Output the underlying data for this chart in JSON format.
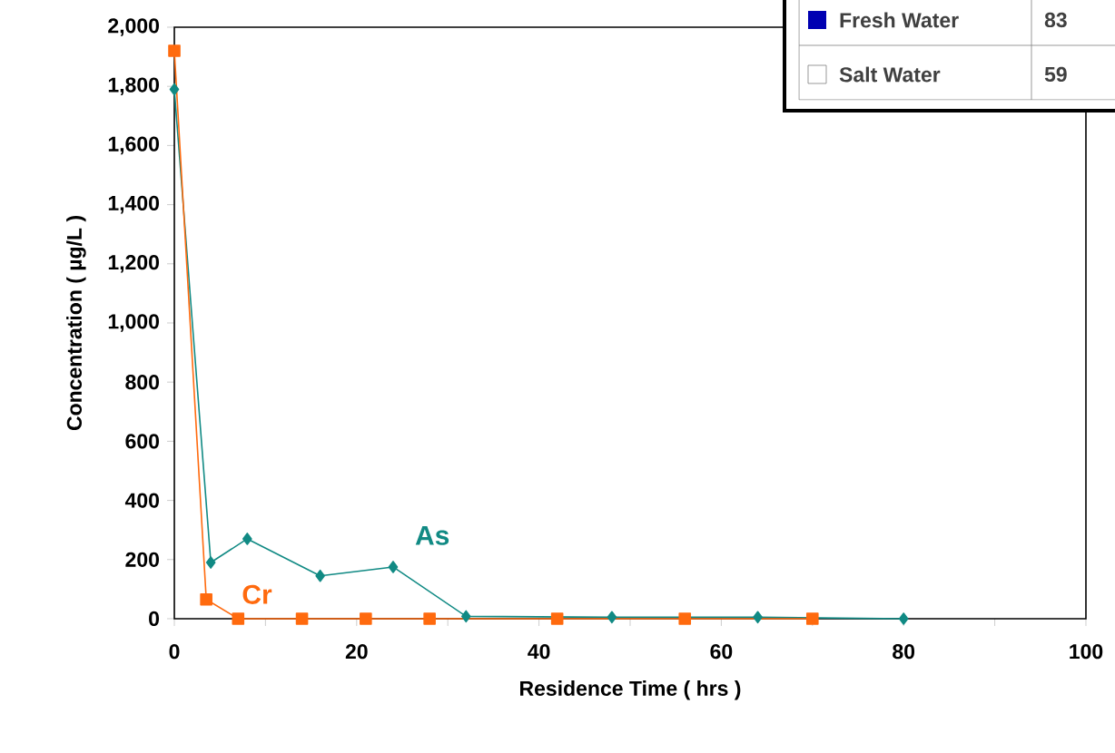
{
  "chart_data": {
    "type": "line",
    "xlabel": "Residence Time ( hrs )",
    "ylabel": "Concentration  ( µg/L )",
    "xlim": [
      0,
      100
    ],
    "xticks": [
      0,
      20,
      40,
      60,
      80,
      100
    ],
    "ylim": [
      0,
      2000
    ],
    "yticks": [
      0,
      {
        "value": 200,
        "label": "200"
      },
      {
        "value": 400,
        "label": "400"
      },
      {
        "value": 600,
        "label": "600"
      },
      {
        "value": 800,
        "label": "800"
      },
      {
        "value": 1000,
        "label": "1,000"
      },
      {
        "value": 1200,
        "label": "1,200"
      },
      {
        "value": 1400,
        "label": "1,400"
      },
      {
        "value": 1600,
        "label": "1,600"
      },
      {
        "value": 1800,
        "label": "1,800"
      },
      {
        "value": 2000,
        "label": "2,000"
      }
    ],
    "grid": false,
    "line_style": "solid",
    "annotations": [
      "Fresh Water",
      "83",
      "Salt Water",
      "59"
    ],
    "series": [
      {
        "name": "As",
        "color": "#118a84",
        "marker": "diamond",
        "x": [
          0,
          4,
          8,
          16,
          24,
          32,
          48,
          64,
          80
        ],
        "values": [
          1790,
          190,
          270,
          145,
          175,
          8,
          5,
          5,
          0
        ]
      },
      {
        "name": "Cr",
        "color": "#ff6a0e",
        "marker": "square",
        "x": [
          0,
          3.5,
          7,
          14,
          21,
          28,
          42,
          56,
          70
        ],
        "values": [
          1920,
          65,
          0,
          0,
          0,
          0,
          0,
          0,
          0
        ]
      }
    ]
  }
}
